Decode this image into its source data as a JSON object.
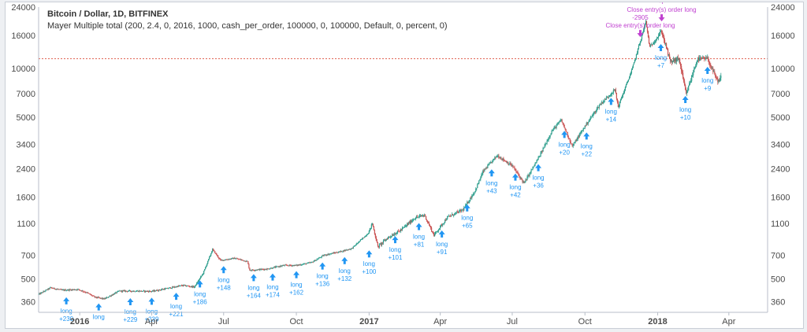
{
  "header": {
    "symbol_title": "Bitcoin / Dollar, 1D, BITFINEX",
    "strategy_line": "Mayer Multiple total (200, 2.4, 0, 2016, 1000, cash_per_order, 100000, 0, 100000, Default, 0, percent, 0)"
  },
  "colors": {
    "background": "#ffffff",
    "axis_text": "#4a4a4a",
    "up_candle": "#2e9e8d",
    "down_candle": "#c95151",
    "long_arrow": "#2196f3",
    "close_label": "#c040d0",
    "hline": "#e06050"
  },
  "chart_data": {
    "type": "candlestick",
    "title": "Bitcoin / Dollar, 1D, BITFINEX",
    "y_scale": "log",
    "ylim": [
      310,
      24000
    ],
    "y_ticks": [
      360,
      500,
      700,
      1100,
      1600,
      2400,
      3400,
      5000,
      7000,
      10000,
      16000,
      24000
    ],
    "y_tick_labels": [
      "360",
      "500",
      "700",
      "1100",
      "1600",
      "2400",
      "3400",
      "5000",
      "7000",
      "10000",
      "16000",
      "24000"
    ],
    "y_axis_sides": [
      "left",
      "right"
    ],
    "xlim": [
      "2015-11-10",
      "2018-05-20"
    ],
    "x_ticks": [
      {
        "date": "2016-01-01",
        "label": "2016",
        "bold": true
      },
      {
        "date": "2016-04-01",
        "label": "Apr",
        "bold": false
      },
      {
        "date": "2016-07-01",
        "label": "Jul",
        "bold": false
      },
      {
        "date": "2016-10-01",
        "label": "Oct",
        "bold": false
      },
      {
        "date": "2017-01-01",
        "label": "2017",
        "bold": true
      },
      {
        "date": "2017-04-01",
        "label": "Apr",
        "bold": false
      },
      {
        "date": "2017-07-01",
        "label": "Jul",
        "bold": false
      },
      {
        "date": "2017-10-01",
        "label": "Oct",
        "bold": false
      },
      {
        "date": "2018-01-01",
        "label": "2018",
        "bold": true
      },
      {
        "date": "2018-04-01",
        "label": "Apr",
        "bold": false
      }
    ],
    "grid": false,
    "horizontal_line": 11500,
    "price_path": [
      [
        "2015-11-10",
        400
      ],
      [
        "2015-11-25",
        440
      ],
      [
        "2015-12-10",
        425
      ],
      [
        "2015-12-30",
        430
      ],
      [
        "2016-01-10",
        410
      ],
      [
        "2016-01-20",
        385
      ],
      [
        "2016-02-01",
        375
      ],
      [
        "2016-02-20",
        420
      ],
      [
        "2016-03-10",
        420
      ],
      [
        "2016-04-01",
        418
      ],
      [
        "2016-04-20",
        435
      ],
      [
        "2016-05-10",
        455
      ],
      [
        "2016-05-25",
        445
      ],
      [
        "2016-06-05",
        540
      ],
      [
        "2016-06-17",
        760
      ],
      [
        "2016-06-27",
        650
      ],
      [
        "2016-07-15",
        670
      ],
      [
        "2016-07-31",
        640
      ],
      [
        "2016-08-03",
        565
      ],
      [
        "2016-08-25",
        575
      ],
      [
        "2016-09-15",
        605
      ],
      [
        "2016-10-01",
        605
      ],
      [
        "2016-10-20",
        630
      ],
      [
        "2016-11-05",
        700
      ],
      [
        "2016-11-25",
        735
      ],
      [
        "2016-12-10",
        770
      ],
      [
        "2016-12-31",
        960
      ],
      [
        "2017-01-05",
        1100
      ],
      [
        "2017-01-12",
        790
      ],
      [
        "2017-01-25",
        900
      ],
      [
        "2017-02-10",
        1000
      ],
      [
        "2017-02-28",
        1190
      ],
      [
        "2017-03-12",
        1240
      ],
      [
        "2017-03-24",
        930
      ],
      [
        "2017-04-10",
        1200
      ],
      [
        "2017-04-30",
        1340
      ],
      [
        "2017-05-15",
        1750
      ],
      [
        "2017-05-25",
        2300
      ],
      [
        "2017-06-12",
        2900
      ],
      [
        "2017-07-01",
        2500
      ],
      [
        "2017-07-16",
        1950
      ],
      [
        "2017-08-05",
        2900
      ],
      [
        "2017-08-20",
        4100
      ],
      [
        "2017-09-01",
        4800
      ],
      [
        "2017-09-15",
        3300
      ],
      [
        "2017-10-01",
        4400
      ],
      [
        "2017-10-20",
        6000
      ],
      [
        "2017-11-08",
        7400
      ],
      [
        "2017-11-12",
        5800
      ],
      [
        "2017-11-30",
        10000
      ],
      [
        "2017-12-17",
        19500
      ],
      [
        "2017-12-22",
        13500
      ],
      [
        "2018-01-06",
        17000
      ],
      [
        "2018-01-17",
        11000
      ],
      [
        "2018-01-28",
        11500
      ],
      [
        "2018-02-06",
        6900
      ],
      [
        "2018-02-20",
        11400
      ],
      [
        "2018-03-05",
        11500
      ],
      [
        "2018-03-18",
        8200
      ],
      [
        "2018-03-22",
        8900
      ]
    ],
    "long_entries": [
      {
        "date": "2015-12-15",
        "price": 420,
        "label": "long",
        "value": "+230"
      },
      {
        "date": "2016-01-25",
        "price": 385,
        "label": "long",
        "value": ""
      },
      {
        "date": "2016-03-05",
        "price": 415,
        "label": "long",
        "value": "+229"
      },
      {
        "date": "2016-04-01",
        "price": 418,
        "label": "long",
        "value": "+239"
      },
      {
        "date": "2016-05-02",
        "price": 448,
        "label": "long",
        "value": "+221"
      },
      {
        "date": "2016-06-01",
        "price": 535,
        "label": "long",
        "value": "+186"
      },
      {
        "date": "2016-07-01",
        "price": 655,
        "label": "long",
        "value": "+148"
      },
      {
        "date": "2016-08-08",
        "price": 585,
        "label": "long",
        "value": "+164"
      },
      {
        "date": "2016-09-01",
        "price": 590,
        "label": "long",
        "value": "+174"
      },
      {
        "date": "2016-10-01",
        "price": 610,
        "label": "long",
        "value": "+162"
      },
      {
        "date": "2016-11-03",
        "price": 690,
        "label": "long",
        "value": "+136"
      },
      {
        "date": "2016-12-01",
        "price": 745,
        "label": "long",
        "value": "+132"
      },
      {
        "date": "2017-01-01",
        "price": 820,
        "label": "long",
        "value": "+100"
      },
      {
        "date": "2017-02-03",
        "price": 1005,
        "label": "long",
        "value": "+101"
      },
      {
        "date": "2017-03-05",
        "price": 1210,
        "label": "long",
        "value": "+81"
      },
      {
        "date": "2017-04-03",
        "price": 1090,
        "label": "long",
        "value": "+91"
      },
      {
        "date": "2017-05-05",
        "price": 1580,
        "label": "long",
        "value": "+65"
      },
      {
        "date": "2017-06-05",
        "price": 2600,
        "label": "long",
        "value": "+43"
      },
      {
        "date": "2017-07-05",
        "price": 2450,
        "label": "long",
        "value": "+42"
      },
      {
        "date": "2017-08-03",
        "price": 2800,
        "label": "long",
        "value": "+36"
      },
      {
        "date": "2017-09-05",
        "price": 4500,
        "label": "long",
        "value": "+20"
      },
      {
        "date": "2017-10-03",
        "price": 4400,
        "label": "long",
        "value": "+22"
      },
      {
        "date": "2017-11-03",
        "price": 7200,
        "label": "long",
        "value": "+14"
      },
      {
        "date": "2018-01-05",
        "price": 15500,
        "label": "long",
        "value": "+7"
      },
      {
        "date": "2018-02-05",
        "price": 7400,
        "label": "long",
        "value": "+10"
      },
      {
        "date": "2018-03-05",
        "price": 11200,
        "label": "long",
        "value": "+9"
      }
    ],
    "close_events": [
      {
        "date": "2017-12-10",
        "price": 14000,
        "label": "Close entry(s) order long",
        "value": "-2905"
      },
      {
        "date": "2018-01-06",
        "price": 17500,
        "label": "Close entry(s) order long",
        "value": "-7"
      }
    ]
  }
}
